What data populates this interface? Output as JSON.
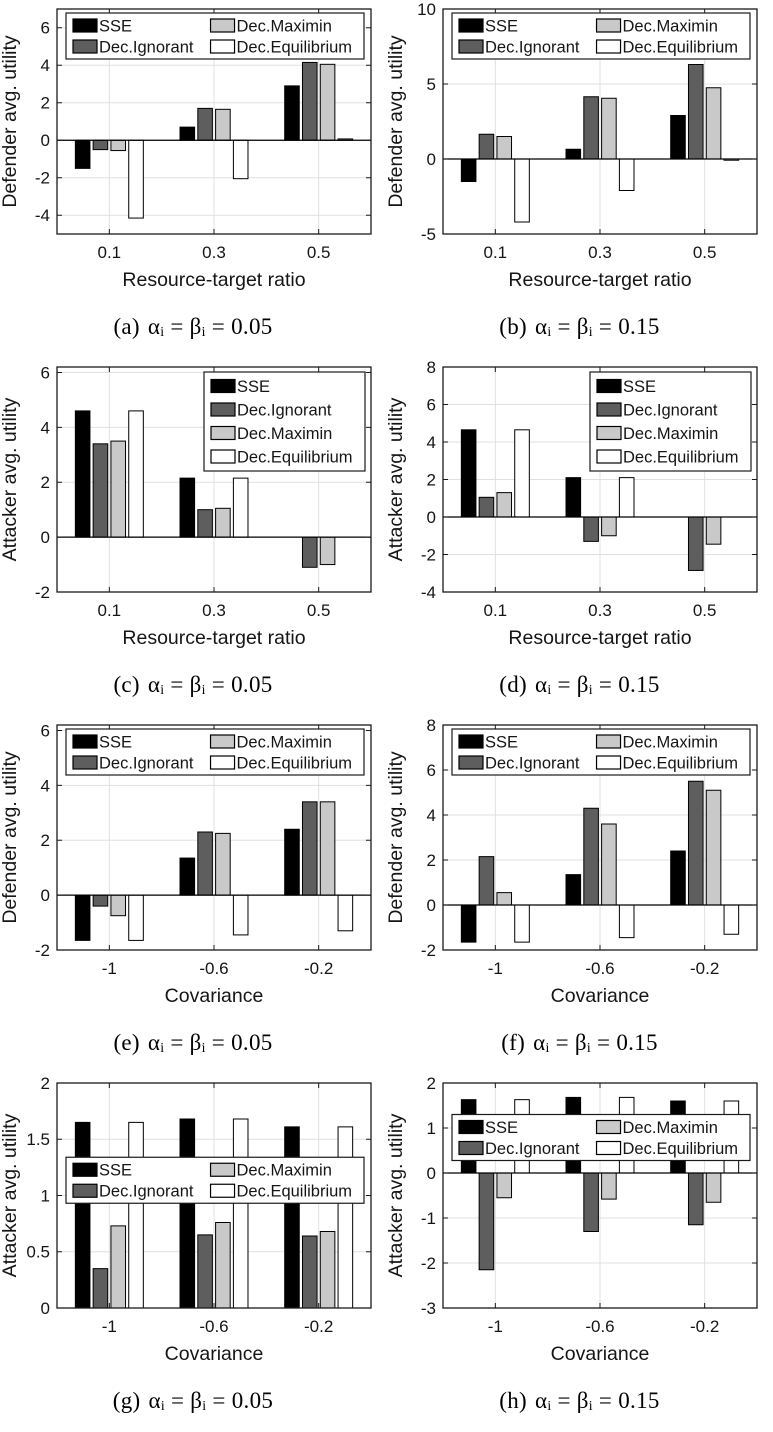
{
  "figure": {
    "background": "#ffffff",
    "axis_color": "#1a1a1a",
    "grid_color": "#e0e0e0",
    "baseline_color": "#000000",
    "series_legend": [
      "SSE",
      "Dec.Ignorant",
      "Dec.Maximin",
      "Dec.Equilibrium"
    ],
    "series_colors": [
      "#000000",
      "#5e5e5e",
      "#c9c9c9",
      "#ffffff"
    ]
  },
  "chart_data": [
    {
      "id": "a",
      "type": "bar",
      "ylabel": "Defender avg. utility",
      "xlabel": "Resource-target ratio",
      "categories": [
        "0.1",
        "0.3",
        "0.5"
      ],
      "series": [
        {
          "name": "SSE",
          "color": "#000000",
          "values": [
            -1.5,
            0.7,
            2.9
          ]
        },
        {
          "name": "Dec.Ignorant",
          "color": "#5e5e5e",
          "values": [
            -0.5,
            1.7,
            4.15
          ]
        },
        {
          "name": "Dec.Maximin",
          "color": "#c9c9c9",
          "values": [
            -0.55,
            1.65,
            4.05
          ]
        },
        {
          "name": "Dec.Equilibrium",
          "color": "#ffffff",
          "values": [
            -4.15,
            -2.05,
            0.07
          ]
        }
      ],
      "ylim": [
        -5,
        7
      ],
      "yticks": [
        -4,
        -2,
        0,
        2,
        4,
        6
      ],
      "grid": true,
      "legend": {
        "position": "top-span",
        "columns": 2,
        "y_frac": 0
      },
      "caption": {
        "label": "(a)",
        "formula": "αᵢ = βᵢ = 0.05"
      }
    },
    {
      "id": "b",
      "type": "bar",
      "ylabel": "Defender avg. utility",
      "xlabel": "Resource-target ratio",
      "categories": [
        "0.1",
        "0.3",
        "0.5"
      ],
      "series": [
        {
          "name": "SSE",
          "color": "#000000",
          "values": [
            -1.5,
            0.65,
            2.9
          ]
        },
        {
          "name": "Dec.Ignorant",
          "color": "#5e5e5e",
          "values": [
            1.65,
            4.15,
            6.3
          ]
        },
        {
          "name": "Dec.Maximin",
          "color": "#c9c9c9",
          "values": [
            1.5,
            4.05,
            4.75
          ]
        },
        {
          "name": "Dec.Equilibrium",
          "color": "#ffffff",
          "values": [
            -4.2,
            -2.1,
            -0.08
          ]
        }
      ],
      "ylim": [
        -5,
        10
      ],
      "yticks": [
        -5,
        0,
        5,
        10
      ],
      "grid": true,
      "legend": {
        "position": "top-span",
        "columns": 2,
        "y_frac": 0
      },
      "caption": {
        "label": "(b)",
        "formula": "αᵢ = βᵢ = 0.15"
      }
    },
    {
      "id": "c",
      "type": "bar",
      "ylabel": "Attacker avg. utility",
      "xlabel": "Resource-target ratio",
      "categories": [
        "0.1",
        "0.3",
        "0.5"
      ],
      "series": [
        {
          "name": "SSE",
          "color": "#000000",
          "values": [
            4.6,
            2.15,
            0
          ]
        },
        {
          "name": "Dec.Ignorant",
          "color": "#5e5e5e",
          "values": [
            3.4,
            1.0,
            -1.1
          ]
        },
        {
          "name": "Dec.Maximin",
          "color": "#c9c9c9",
          "values": [
            3.5,
            1.05,
            -1.0
          ]
        },
        {
          "name": "Dec.Equilibrium",
          "color": "#ffffff",
          "values": [
            4.6,
            2.15,
            0
          ]
        }
      ],
      "ylim": [
        -2,
        6.2
      ],
      "yticks": [
        -2,
        0,
        2,
        4,
        6
      ],
      "grid": true,
      "legend": {
        "position": "top-right",
        "columns": 1,
        "y_frac": 0
      },
      "caption": {
        "label": "(c)",
        "formula": "αᵢ = βᵢ = 0.05"
      }
    },
    {
      "id": "d",
      "type": "bar",
      "ylabel": "Attacker avg. utility",
      "xlabel": "Resource-target ratio",
      "categories": [
        "0.1",
        "0.3",
        "0.5"
      ],
      "series": [
        {
          "name": "SSE",
          "color": "#000000",
          "values": [
            4.65,
            2.1,
            0
          ]
        },
        {
          "name": "Dec.Ignorant",
          "color": "#5e5e5e",
          "values": [
            1.05,
            -1.3,
            -2.85
          ]
        },
        {
          "name": "Dec.Maximin",
          "color": "#c9c9c9",
          "values": [
            1.3,
            -1.0,
            -1.45
          ]
        },
        {
          "name": "Dec.Equilibrium",
          "color": "#ffffff",
          "values": [
            4.65,
            2.1,
            0
          ]
        }
      ],
      "ylim": [
        -4,
        8
      ],
      "yticks": [
        -4,
        -2,
        0,
        2,
        4,
        6,
        8
      ],
      "grid": true,
      "legend": {
        "position": "top-right",
        "columns": 1,
        "y_frac": 0
      },
      "caption": {
        "label": "(d)",
        "formula": "αᵢ = βᵢ = 0.15"
      }
    },
    {
      "id": "e",
      "type": "bar",
      "ylabel": "Defender avg. utility",
      "xlabel": "Covariance",
      "categories": [
        "-1",
        "-0.6",
        "-0.2"
      ],
      "series": [
        {
          "name": "SSE",
          "color": "#000000",
          "values": [
            -1.65,
            1.35,
            2.4
          ]
        },
        {
          "name": "Dec.Ignorant",
          "color": "#5e5e5e",
          "values": [
            -0.4,
            2.3,
            3.4
          ]
        },
        {
          "name": "Dec.Maximin",
          "color": "#c9c9c9",
          "values": [
            -0.75,
            2.25,
            3.4
          ]
        },
        {
          "name": "Dec.Equilibrium",
          "color": "#ffffff",
          "values": [
            -1.65,
            -1.45,
            -1.3
          ]
        }
      ],
      "ylim": [
        -2,
        6.2
      ],
      "yticks": [
        -2,
        0,
        2,
        4,
        6
      ],
      "grid": true,
      "legend": {
        "position": "top-span",
        "columns": 2,
        "y_frac": 0
      },
      "caption": {
        "label": "(e)",
        "formula": "αᵢ = βᵢ = 0.05"
      }
    },
    {
      "id": "f",
      "type": "bar",
      "ylabel": "Defender avg. utility",
      "xlabel": "Covariance",
      "categories": [
        "-1",
        "-0.6",
        "-0.2"
      ],
      "series": [
        {
          "name": "SSE",
          "color": "#000000",
          "values": [
            -1.65,
            1.35,
            2.4
          ]
        },
        {
          "name": "Dec.Ignorant",
          "color": "#5e5e5e",
          "values": [
            2.15,
            4.3,
            5.5
          ]
        },
        {
          "name": "Dec.Maximin",
          "color": "#c9c9c9",
          "values": [
            0.55,
            3.6,
            5.1
          ]
        },
        {
          "name": "Dec.Equilibrium",
          "color": "#ffffff",
          "values": [
            -1.65,
            -1.45,
            -1.3
          ]
        }
      ],
      "ylim": [
        -2,
        8
      ],
      "yticks": [
        -2,
        0,
        2,
        4,
        6,
        8
      ],
      "grid": true,
      "legend": {
        "position": "top-span",
        "columns": 2,
        "y_frac": 0
      },
      "caption": {
        "label": "(f)",
        "formula": "αᵢ = βᵢ = 0.15"
      }
    },
    {
      "id": "g",
      "type": "bar",
      "ylabel": "Attacker avg. utility",
      "xlabel": "Covariance",
      "categories": [
        "-1",
        "-0.6",
        "-0.2"
      ],
      "series": [
        {
          "name": "SSE",
          "color": "#000000",
          "values": [
            1.65,
            1.68,
            1.61
          ]
        },
        {
          "name": "Dec.Ignorant",
          "color": "#5e5e5e",
          "values": [
            0.35,
            0.65,
            0.64
          ]
        },
        {
          "name": "Dec.Maximin",
          "color": "#c9c9c9",
          "values": [
            0.73,
            0.76,
            0.68
          ]
        },
        {
          "name": "Dec.Equilibrium",
          "color": "#ffffff",
          "values": [
            1.65,
            1.68,
            1.61
          ]
        }
      ],
      "ylim": [
        0,
        2
      ],
      "yticks": [
        0,
        0.5,
        1,
        1.5,
        2
      ],
      "grid": true,
      "legend": {
        "position": "mid-span",
        "columns": 2,
        "y_frac": 0.33
      },
      "caption": {
        "label": "(g)",
        "formula": "αᵢ = βᵢ = 0.05"
      }
    },
    {
      "id": "h",
      "type": "bar",
      "ylabel": "Attacker avg. utility",
      "xlabel": "Covariance",
      "categories": [
        "-1",
        "-0.6",
        "-0.2"
      ],
      "series": [
        {
          "name": "SSE",
          "color": "#000000",
          "values": [
            1.63,
            1.68,
            1.6
          ]
        },
        {
          "name": "Dec.Ignorant",
          "color": "#5e5e5e",
          "values": [
            -2.15,
            -1.3,
            -1.15
          ]
        },
        {
          "name": "Dec.Maximin",
          "color": "#c9c9c9",
          "values": [
            -0.55,
            -0.58,
            -0.65
          ]
        },
        {
          "name": "Dec.Equilibrium",
          "color": "#ffffff",
          "values": [
            1.63,
            1.68,
            1.6
          ]
        }
      ],
      "ylim": [
        -3,
        2
      ],
      "yticks": [
        -3,
        -2,
        -1,
        0,
        1,
        2
      ],
      "grid": true,
      "legend": {
        "position": "mid-span",
        "columns": 2,
        "y_frac": 0.14
      },
      "caption": {
        "label": "(h)",
        "formula": "αᵢ = βᵢ = 0.15"
      }
    }
  ]
}
